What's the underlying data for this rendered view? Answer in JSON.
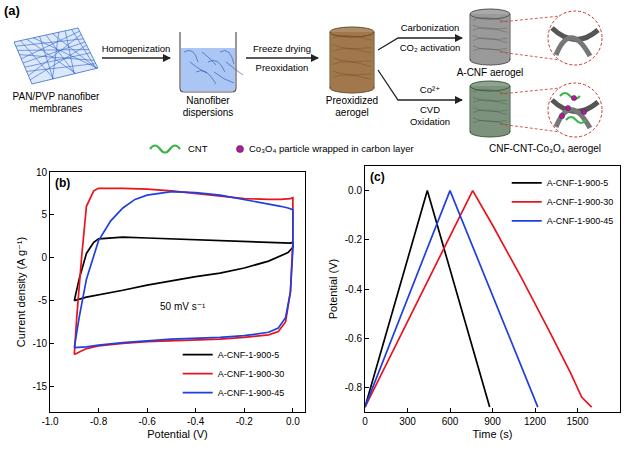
{
  "diagram": {
    "label": "(a)",
    "nodes": [
      {
        "label": "PAN/PVP nanofiber membranes"
      },
      {
        "label": "Nanofiber dispersions"
      },
      {
        "label": "Preoxidized aerogel"
      },
      {
        "label": "A-CNF aerogel"
      },
      {
        "label": "CNF-CNT-Co₃O₄ aerogel"
      }
    ],
    "steps": [
      {
        "labels": [
          "Homogenization"
        ]
      },
      {
        "labels": [
          "Freeze drying",
          "Preoxidation"
        ]
      },
      {
        "labels": [
          "Carbonization",
          "CO₂ activation"
        ]
      },
      {
        "labels": [
          "Co²⁺",
          "CVD",
          "Oxidation"
        ]
      }
    ],
    "key": [
      {
        "label": "CNT",
        "color": "#3cb44b"
      },
      {
        "label": "Co₃O₄ particle wrapped in carbon layer",
        "color": "#b5179e"
      }
    ]
  },
  "chart_data": [
    {
      "type": "line",
      "panel_label": "(b)",
      "x_label": "Potential (V)",
      "y_label": "Current density (A g⁻¹)",
      "annotations": [
        "50 mV s⁻¹"
      ],
      "xlim": [
        -1.0,
        0.05
      ],
      "xticks": [
        {
          "value": -1.0,
          "label": "-1.0"
        },
        -0.8,
        -0.6,
        -0.4,
        -0.2,
        {
          "value": 0,
          "label": "0.0"
        }
      ],
      "ylim": [
        -18,
        10
      ],
      "yticks": [
        -15,
        -10,
        -5,
        0,
        5,
        10
      ],
      "grid": false,
      "legend": "lower right",
      "series": [
        {
          "name": "A-CNF-1-900-5",
          "color": "#000000",
          "x": [
            -0.9,
            -0.88,
            -0.85,
            -0.82,
            -0.8,
            -0.7,
            -0.6,
            -0.5,
            -0.4,
            -0.3,
            -0.2,
            -0.1,
            -0.05,
            -0.01,
            0,
            0,
            -0.02,
            -0.05,
            -0.1,
            -0.2,
            -0.3,
            -0.4,
            -0.5,
            -0.6,
            -0.7,
            -0.8,
            -0.85,
            -0.9
          ],
          "values": [
            -5,
            -2.5,
            0.5,
            1.8,
            2.2,
            2.4,
            2.3,
            2.2,
            2.1,
            2.0,
            1.9,
            1.8,
            1.7,
            1.7,
            1.8,
            1.2,
            0.6,
            0.2,
            -0.4,
            -1.2,
            -1.8,
            -2.2,
            -2.7,
            -3.2,
            -3.8,
            -4.3,
            -4.6,
            -5
          ]
        },
        {
          "name": "A-CNF-1-900-30",
          "color": "#e8141c",
          "x": [
            -0.9,
            -0.89,
            -0.87,
            -0.85,
            -0.82,
            -0.8,
            -0.7,
            -0.6,
            -0.5,
            -0.4,
            -0.3,
            -0.2,
            -0.1,
            -0.05,
            -0.01,
            0,
            0,
            -0.01,
            -0.03,
            -0.06,
            -0.1,
            -0.2,
            -0.3,
            -0.4,
            -0.5,
            -0.6,
            -0.7,
            -0.8,
            -0.85,
            -0.9
          ],
          "values": [
            -11.3,
            -7,
            0,
            6,
            7.8,
            8.1,
            8.1,
            8.0,
            7.8,
            7.5,
            7.2,
            6.9,
            6.8,
            6.8,
            6.9,
            7.0,
            2,
            -4,
            -7.5,
            -8.6,
            -9.0,
            -9.3,
            -9.5,
            -9.6,
            -9.7,
            -9.8,
            -10.0,
            -10.3,
            -10.6,
            -11.3
          ]
        },
        {
          "name": "A-CNF-1-900-45",
          "color": "#1f3fe0",
          "x": [
            -0.9,
            -0.88,
            -0.85,
            -0.8,
            -0.75,
            -0.7,
            -0.65,
            -0.6,
            -0.5,
            -0.4,
            -0.3,
            -0.2,
            -0.1,
            -0.05,
            -0.02,
            0,
            0,
            -0.01,
            -0.03,
            -0.06,
            -0.1,
            -0.2,
            -0.3,
            -0.4,
            -0.5,
            -0.6,
            -0.7,
            -0.8,
            -0.85,
            -0.9
          ],
          "values": [
            -10.5,
            -7,
            -2.5,
            2,
            4.3,
            5.8,
            6.8,
            7.3,
            7.7,
            7.6,
            7.3,
            6.8,
            6.3,
            6.0,
            5.8,
            5.6,
            1,
            -4,
            -7,
            -8.2,
            -8.7,
            -9.1,
            -9.3,
            -9.4,
            -9.5,
            -9.7,
            -9.9,
            -10.2,
            -10.4,
            -10.5
          ]
        }
      ]
    },
    {
      "type": "line",
      "panel_label": "(c)",
      "x_label": "Time (s)",
      "y_label": "Potential (V)",
      "annotations": [],
      "xlim": [
        0,
        1800
      ],
      "xticks": [
        0,
        300,
        600,
        900,
        1200,
        1500
      ],
      "ylim": [
        -0.9,
        0.1
      ],
      "yticks": [
        -0.8,
        -0.6,
        -0.4,
        -0.2,
        {
          "value": 0,
          "label": "0.0"
        }
      ],
      "grid": false,
      "legend": "upper right",
      "series": [
        {
          "name": "A-CNF-1-900-5",
          "color": "#000000",
          "x": [
            0,
            440,
            880
          ],
          "values": [
            -0.88,
            0,
            -0.88
          ]
        },
        {
          "name": "A-CNF-1-900-30",
          "color": "#e8141c",
          "x": [
            0,
            200,
            400,
            600,
            760,
            900,
            1100,
            1300,
            1450,
            1530,
            1600
          ],
          "values": [
            -0.88,
            -0.65,
            -0.42,
            -0.19,
            0,
            -0.14,
            -0.35,
            -0.57,
            -0.74,
            -0.84,
            -0.88
          ]
        },
        {
          "name": "A-CNF-1-900-45",
          "color": "#1f3fe0",
          "x": [
            0,
            600,
            1220
          ],
          "values": [
            -0.88,
            0,
            -0.88
          ]
        }
      ]
    }
  ]
}
